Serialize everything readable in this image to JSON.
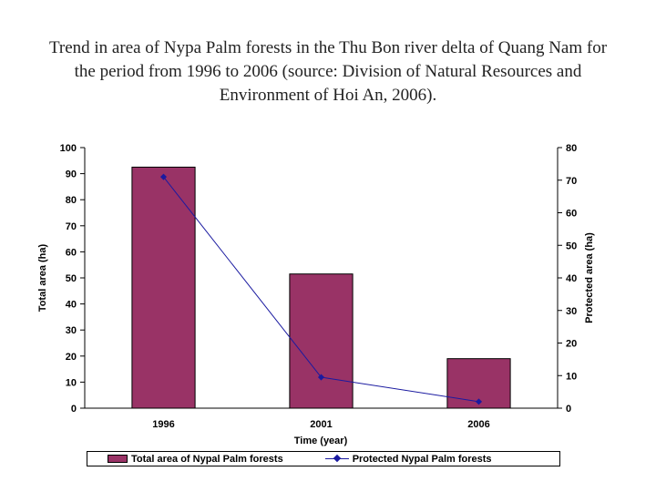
{
  "chart_data": {
    "type": "bar",
    "title": "Trend in area of Nypa Palm forests in the Thu Bon river delta of Quang Nam for the period from 1996 to 2006 (source: Division of Natural Resources and Environment of Hoi An, 2006).",
    "xlabel": "Time (year)",
    "ylabel_left": "Total area (ha)",
    "ylabel_right": "Protected area (ha)",
    "categories": [
      "1996",
      "2001",
      "2006"
    ],
    "ylim_left": [
      0,
      100
    ],
    "ylim_right": [
      0,
      80
    ],
    "yticks_left": [
      "0",
      "10",
      "20",
      "30",
      "40",
      "50",
      "60",
      "70",
      "80",
      "90",
      "100"
    ],
    "yticks_right": [
      "0",
      "10",
      "20",
      "30",
      "40",
      "50",
      "60",
      "70",
      "80"
    ],
    "grid": false,
    "legend_position": "bottom",
    "series": [
      {
        "name": "Total area of Nypal Palm forests",
        "type": "bar",
        "axis": "left",
        "values": [
          92.5,
          51.5,
          19
        ],
        "color": "#993366"
      },
      {
        "name": "Protected Nypal Palm forests",
        "type": "line",
        "axis": "right",
        "values": [
          71,
          9.5,
          2
        ],
        "color": "#1a1aa0"
      }
    ]
  }
}
